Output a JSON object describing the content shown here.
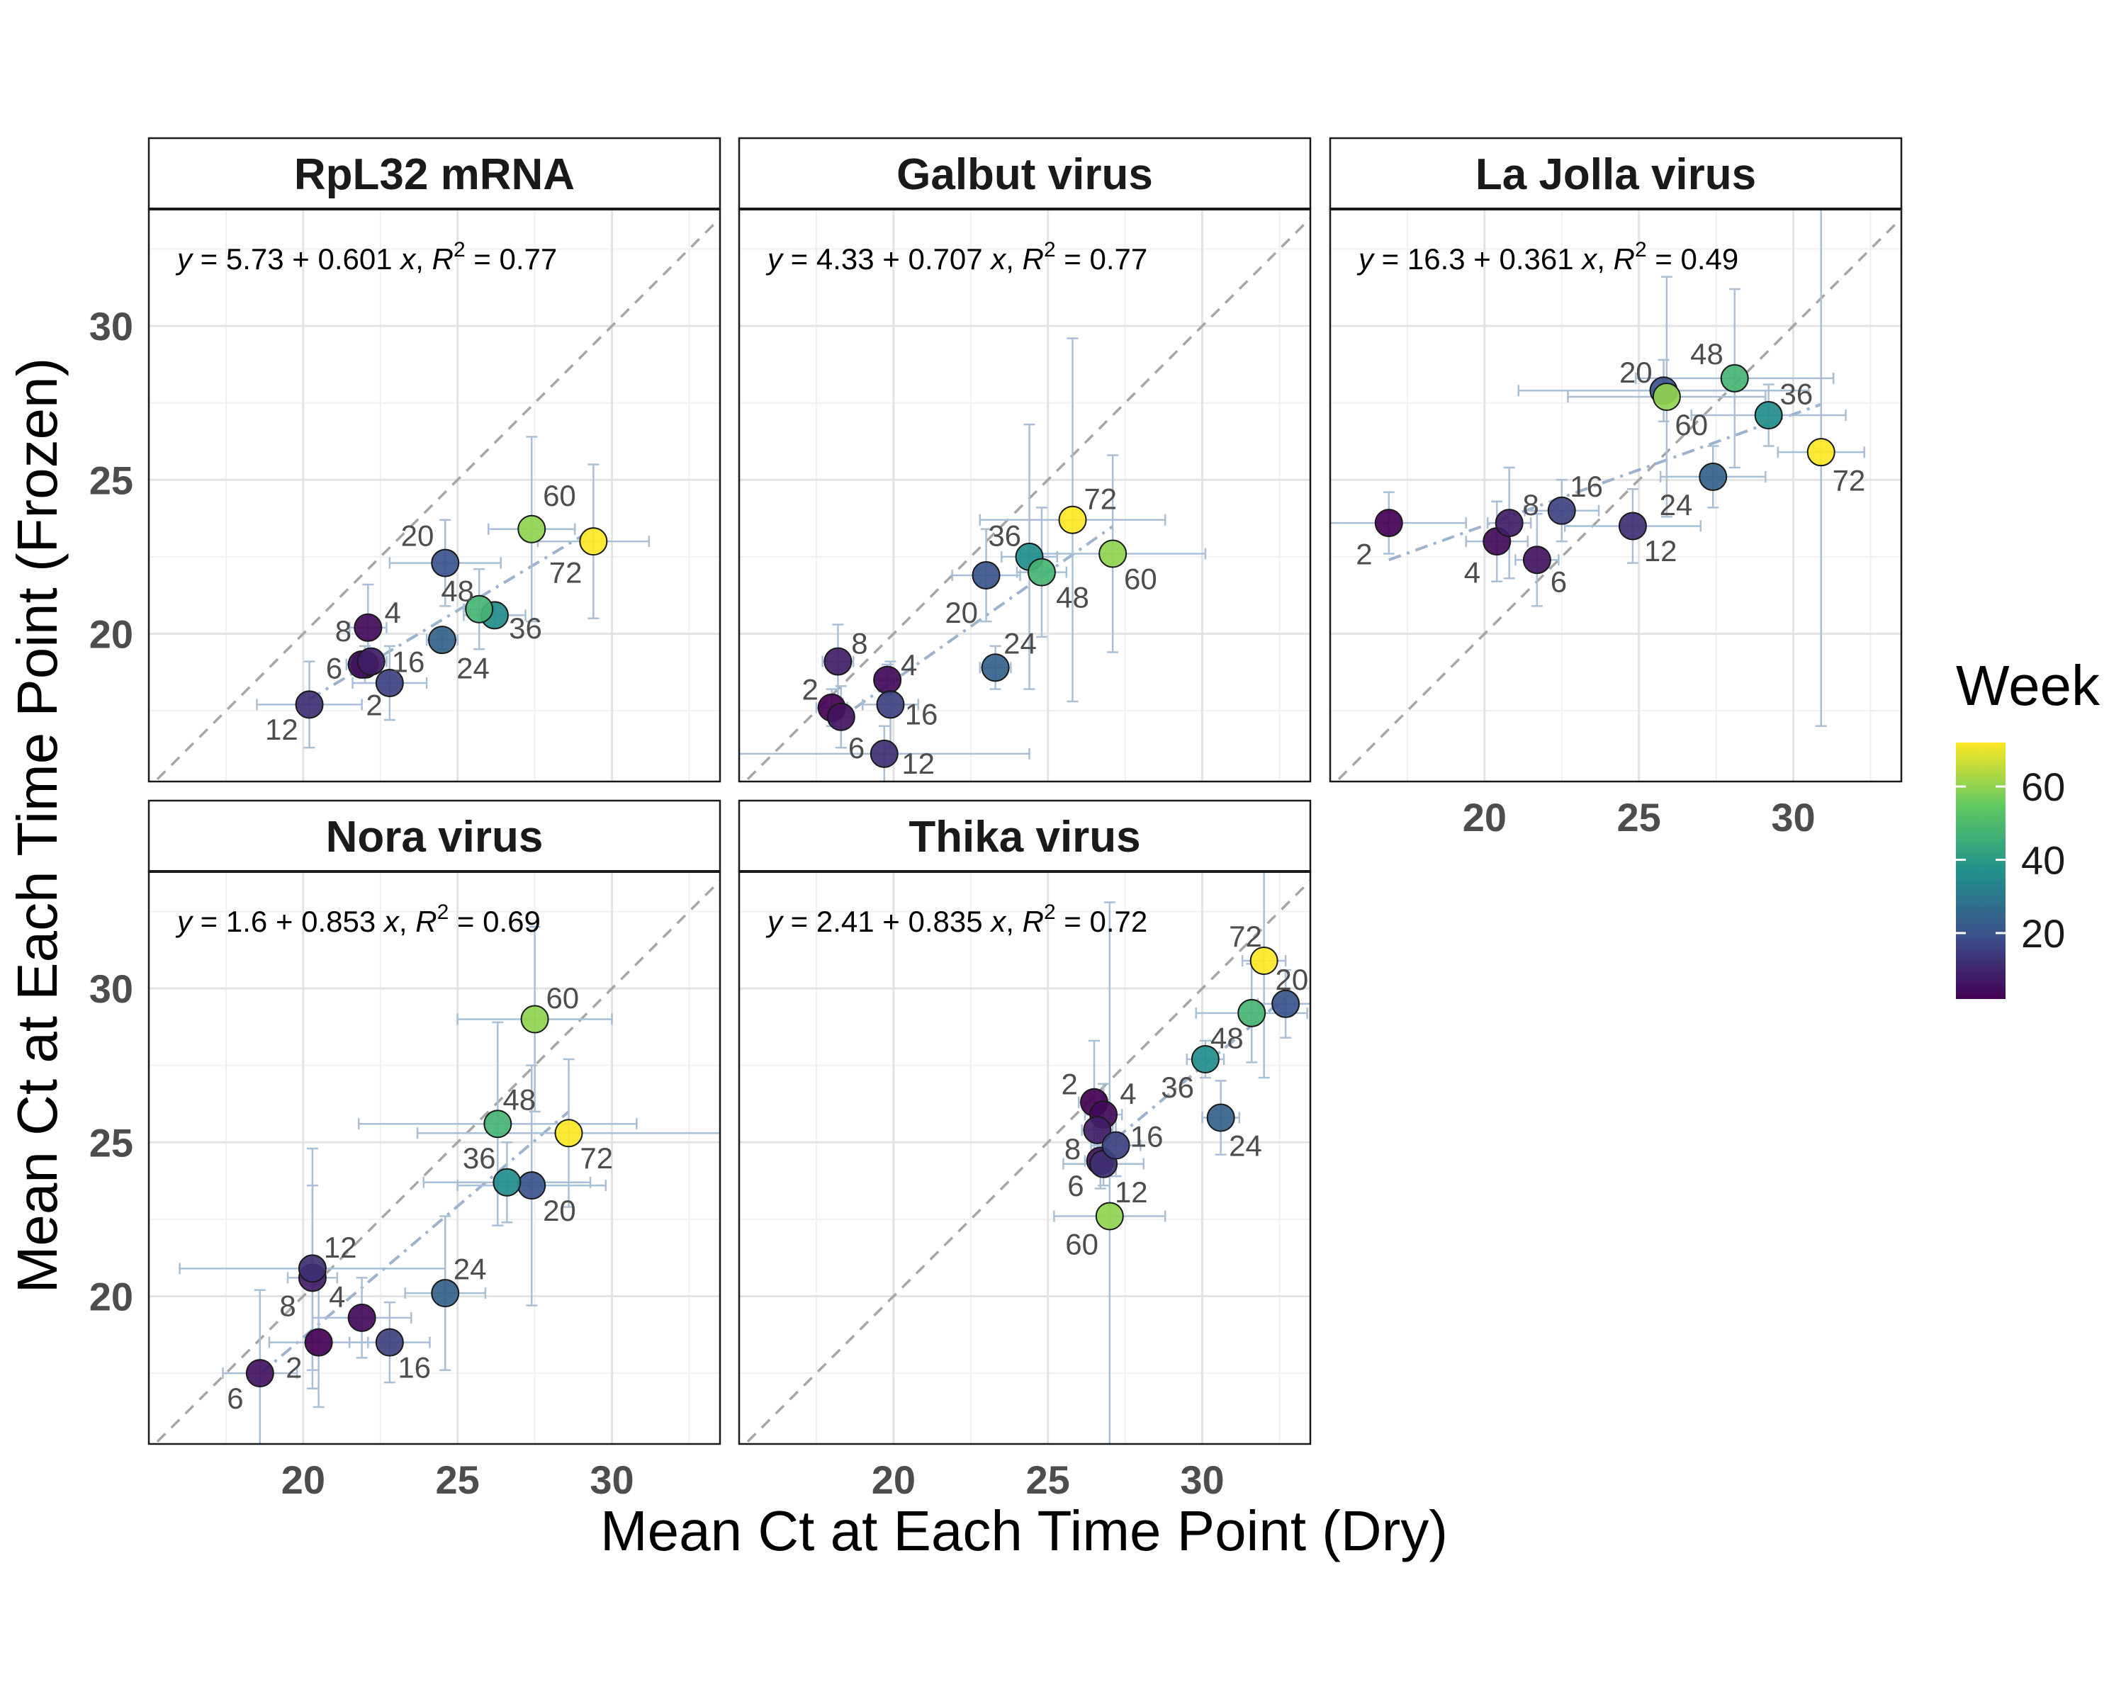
{
  "chart_data": {
    "type": "scatter",
    "xlabel": "Mean Ct at Each Time Point (Dry)",
    "ylabel": "Mean Ct at Each Time Point (Frozen)",
    "xlim": [
      15,
      33.5
    ],
    "ylim": [
      15.2,
      33.8
    ],
    "xticks": [
      20,
      25,
      30
    ],
    "yticks": [
      20,
      25,
      30
    ],
    "grid": true,
    "reference_line": "y = x (dashed)",
    "legend": {
      "title": "Week",
      "placement": "right",
      "type": "colorbar",
      "range": [
        2,
        72
      ],
      "ticks": [
        20,
        40,
        60
      ],
      "colormap": [
        "#440154",
        "#3b528b",
        "#21918c",
        "#5ec962",
        "#fde725"
      ]
    },
    "panels": [
      {
        "title": "RpL32 mRNA",
        "equation": {
          "intercept": "5.73",
          "slope": "0.601",
          "r2": "0.77"
        },
        "points": [
          {
            "week": "2",
            "x": 22.0,
            "y": 19.0,
            "xerr": 0.5,
            "yerr": 0.6,
            "lx": 0.3,
            "ly": -1.3
          },
          {
            "week": "4",
            "x": 22.1,
            "y": 20.2,
            "xerr": 0.6,
            "yerr": 1.4,
            "lx": 0.8,
            "ly": 0.5
          },
          {
            "week": "6",
            "x": 21.9,
            "y": 19.0,
            "xerr": 0.5,
            "yerr": 0.4,
            "lx": -0.9,
            "ly": -0.1
          },
          {
            "week": "8",
            "x": 22.2,
            "y": 19.1,
            "xerr": 0.5,
            "yerr": 0.4,
            "lx": -0.9,
            "ly": 1.0
          },
          {
            "week": "12",
            "x": 20.2,
            "y": 17.7,
            "xerr": 1.7,
            "yerr": 1.4,
            "lx": -0.9,
            "ly": -0.8
          },
          {
            "week": "16",
            "x": 22.8,
            "y": 18.4,
            "xerr": 1.2,
            "yerr": 1.2,
            "lx": 0.6,
            "ly": 0.7
          },
          {
            "week": "20",
            "x": 24.6,
            "y": 22.3,
            "xerr": 1.8,
            "yerr": 1.4,
            "lx": -0.9,
            "ly": 0.9
          },
          {
            "week": "24",
            "x": 24.5,
            "y": 19.8,
            "xerr": 0.5,
            "yerr": 0.3,
            "lx": 1.0,
            "ly": -0.9
          },
          {
            "week": "36",
            "x": 26.2,
            "y": 20.6,
            "xerr": 1.0,
            "yerr": 0.4,
            "lx": 1.0,
            "ly": -0.4
          },
          {
            "week": "48",
            "x": 25.7,
            "y": 20.8,
            "xerr": 0.5,
            "yerr": 1.3,
            "lx": -0.7,
            "ly": 0.6
          },
          {
            "week": "60",
            "x": 27.4,
            "y": 23.4,
            "xerr": 1.4,
            "yerr": 3.0,
            "lx": 0.9,
            "ly": 1.1
          },
          {
            "week": "72",
            "x": 29.4,
            "y": 23.0,
            "xerr": 1.8,
            "yerr": 2.5,
            "lx": -0.9,
            "ly": -1.0
          }
        ]
      },
      {
        "title": "Galbut virus",
        "equation": {
          "intercept": "4.33",
          "slope": "0.707",
          "r2": "0.77"
        },
        "points": [
          {
            "week": "2",
            "x": 18.0,
            "y": 17.6,
            "xerr": 0.5,
            "yerr": 0.6,
            "lx": -0.7,
            "ly": 0.6
          },
          {
            "week": "4",
            "x": 19.8,
            "y": 18.5,
            "xerr": 0.4,
            "yerr": 0.5,
            "lx": 0.7,
            "ly": 0.5
          },
          {
            "week": "6",
            "x": 18.3,
            "y": 17.3,
            "xerr": 0.4,
            "yerr": 1.0,
            "lx": 0.5,
            "ly": -1.0
          },
          {
            "week": "8",
            "x": 18.2,
            "y": 19.1,
            "xerr": 0.5,
            "yerr": 1.2,
            "lx": 0.7,
            "ly": 0.6
          },
          {
            "week": "12",
            "x": 19.7,
            "y": 16.1,
            "xerr": 4.7,
            "yerr": 0.9,
            "lx": 1.1,
            "ly": -0.3
          },
          {
            "week": "16",
            "x": 19.9,
            "y": 17.7,
            "xerr": 0.9,
            "yerr": 1.4,
            "lx": 1.0,
            "ly": -0.3
          },
          {
            "week": "20",
            "x": 23.0,
            "y": 21.9,
            "xerr": 1.1,
            "yerr": 1.5,
            "lx": -0.8,
            "ly": -1.2
          },
          {
            "week": "24",
            "x": 23.3,
            "y": 18.9,
            "xerr": 0.5,
            "yerr": 0.7,
            "lx": 0.8,
            "ly": 0.8
          },
          {
            "week": "36",
            "x": 24.4,
            "y": 22.5,
            "xerr": 0.9,
            "yerr": 4.3,
            "lx": -0.8,
            "ly": 0.7
          },
          {
            "week": "48",
            "x": 24.8,
            "y": 22.0,
            "xerr": 0.8,
            "yerr": 2.1,
            "lx": 1.0,
            "ly": -0.8
          },
          {
            "week": "60",
            "x": 27.1,
            "y": 22.6,
            "xerr": 3.0,
            "yerr": 3.2,
            "lx": 0.9,
            "ly": -0.8
          },
          {
            "week": "72",
            "x": 25.8,
            "y": 23.7,
            "xerr": 3.0,
            "yerr": 5.9,
            "lx": 0.9,
            "ly": 0.7
          }
        ]
      },
      {
        "title": "La Jolla virus",
        "equation": {
          "intercept": "16.3",
          "slope": "0.361",
          "r2": "0.49"
        },
        "points": [
          {
            "week": "2",
            "x": 16.9,
            "y": 23.6,
            "xerr": 2.5,
            "yerr": 1.0,
            "lx": -0.8,
            "ly": -1.0
          },
          {
            "week": "4",
            "x": 20.4,
            "y": 23.0,
            "xerr": 1.0,
            "yerr": 1.3,
            "lx": -0.8,
            "ly": -1.0
          },
          {
            "week": "6",
            "x": 21.7,
            "y": 22.4,
            "xerr": 0.7,
            "yerr": 1.5,
            "lx": 0.7,
            "ly": -0.7
          },
          {
            "week": "8",
            "x": 20.8,
            "y": 23.6,
            "xerr": 0.7,
            "yerr": 1.8,
            "lx": 0.7,
            "ly": 0.6
          },
          {
            "week": "12",
            "x": 24.8,
            "y": 23.5,
            "xerr": 2.2,
            "yerr": 1.2,
            "lx": 0.9,
            "ly": -0.8
          },
          {
            "week": "16",
            "x": 22.5,
            "y": 24.0,
            "xerr": 1.2,
            "yerr": 1.0,
            "lx": 0.8,
            "ly": 0.8
          },
          {
            "week": "20",
            "x": 25.8,
            "y": 27.9,
            "xerr": 4.7,
            "yerr": 1.0,
            "lx": -0.9,
            "ly": 0.6
          },
          {
            "week": "24",
            "x": 27.4,
            "y": 25.1,
            "xerr": 1.7,
            "yerr": 1.0,
            "lx": -1.2,
            "ly": -0.9
          },
          {
            "week": "36",
            "x": 29.2,
            "y": 27.1,
            "xerr": 2.5,
            "yerr": 1.0,
            "lx": 0.9,
            "ly": 0.7
          },
          {
            "week": "48",
            "x": 28.1,
            "y": 28.3,
            "xerr": 3.2,
            "yerr": 2.9,
            "lx": -0.9,
            "ly": 0.8
          },
          {
            "week": "60",
            "x": 25.9,
            "y": 27.7,
            "xerr": 3.2,
            "yerr": 3.9,
            "lx": 0.8,
            "ly": -0.9
          },
          {
            "week": "72",
            "x": 30.9,
            "y": 25.9,
            "xerr": 1.4,
            "yerr": 8.9,
            "lx": 0.9,
            "ly": -0.9
          }
        ]
      },
      {
        "title": "Nora virus",
        "equation": {
          "intercept": "1.6",
          "slope": "0.853",
          "r2": "0.69"
        },
        "points": [
          {
            "week": "2",
            "x": 20.5,
            "y": 18.5,
            "xerr": 1.6,
            "yerr": 2.1,
            "lx": -0.8,
            "ly": -0.8
          },
          {
            "week": "4",
            "x": 21.9,
            "y": 19.3,
            "xerr": 1.6,
            "yerr": 1.3,
            "lx": -0.8,
            "ly": 0.7
          },
          {
            "week": "6",
            "x": 18.6,
            "y": 17.5,
            "xerr": 1.2,
            "yerr": 2.7,
            "lx": -0.8,
            "ly": -0.8
          },
          {
            "week": "8",
            "x": 20.3,
            "y": 20.6,
            "xerr": 0.8,
            "yerr": 3.0,
            "lx": -0.8,
            "ly": -0.9
          },
          {
            "week": "12",
            "x": 20.3,
            "y": 20.9,
            "xerr": 4.3,
            "yerr": 3.9,
            "lx": 0.9,
            "ly": 0.7
          },
          {
            "week": "16",
            "x": 22.8,
            "y": 18.5,
            "xerr": 1.3,
            "yerr": 1.3,
            "lx": 0.8,
            "ly": -0.8
          },
          {
            "week": "20",
            "x": 27.4,
            "y": 23.6,
            "xerr": 2.4,
            "yerr": 3.9,
            "lx": 0.9,
            "ly": -0.8
          },
          {
            "week": "24",
            "x": 24.6,
            "y": 20.1,
            "xerr": 1.3,
            "yerr": 2.5,
            "lx": 0.8,
            "ly": 0.8
          },
          {
            "week": "36",
            "x": 26.6,
            "y": 23.7,
            "xerr": 2.7,
            "yerr": 1.3,
            "lx": -0.9,
            "ly": 0.8
          },
          {
            "week": "48",
            "x": 26.3,
            "y": 25.6,
            "xerr": 4.5,
            "yerr": 3.3,
            "lx": 0.7,
            "ly": 0.8
          },
          {
            "week": "60",
            "x": 27.5,
            "y": 29.0,
            "xerr": 2.5,
            "yerr": 3.0,
            "lx": 0.9,
            "ly": 0.7
          },
          {
            "week": "72",
            "x": 28.6,
            "y": 25.3,
            "xerr": 4.9,
            "yerr": 2.4,
            "lx": 0.9,
            "ly": -0.8
          }
        ]
      },
      {
        "title": "Thika virus",
        "equation": {
          "intercept": "2.41",
          "slope": "0.835",
          "r2": "0.72"
        },
        "points": [
          {
            "week": "2",
            "x": 26.5,
            "y": 26.3,
            "xerr": 0.5,
            "yerr": 2.0,
            "lx": -0.8,
            "ly": 0.6
          },
          {
            "week": "4",
            "x": 26.8,
            "y": 25.9,
            "xerr": 0.6,
            "yerr": 1.0,
            "lx": 0.8,
            "ly": 0.7
          },
          {
            "week": "6",
            "x": 26.7,
            "y": 24.4,
            "xerr": 0.5,
            "yerr": 0.9,
            "lx": -0.8,
            "ly": -0.8
          },
          {
            "week": "8",
            "x": 26.6,
            "y": 25.4,
            "xerr": 0.5,
            "yerr": 0.9,
            "lx": -0.8,
            "ly": -0.6
          },
          {
            "week": "12",
            "x": 26.8,
            "y": 24.3,
            "xerr": 1.3,
            "yerr": 0.7,
            "lx": 0.9,
            "ly": -0.9
          },
          {
            "week": "16",
            "x": 27.2,
            "y": 24.9,
            "xerr": 0.8,
            "yerr": 1.0,
            "lx": 1.0,
            "ly": 0.3
          },
          {
            "week": "20",
            "x": 32.7,
            "y": 29.5,
            "xerr": 0.9,
            "yerr": 1.1,
            "lx": 0.2,
            "ly": 0.8
          },
          {
            "week": "24",
            "x": 30.6,
            "y": 25.8,
            "xerr": 0.6,
            "yerr": 1.2,
            "lx": 0.8,
            "ly": -0.9
          },
          {
            "week": "36",
            "x": 30.1,
            "y": 27.7,
            "xerr": 0.6,
            "yerr": 0.6,
            "lx": -0.9,
            "ly": -0.9
          },
          {
            "week": "48",
            "x": 31.6,
            "y": 29.2,
            "xerr": 1.8,
            "yerr": 1.6,
            "lx": -0.8,
            "ly": -0.8
          },
          {
            "week": "60",
            "x": 27.0,
            "y": 22.6,
            "xerr": 1.8,
            "yerr": 10.2,
            "lx": -0.9,
            "ly": -0.9
          },
          {
            "week": "72",
            "x": 32.0,
            "y": 30.9,
            "xerr": 0.7,
            "yerr": 3.8,
            "lx": -0.6,
            "ly": 0.8
          }
        ]
      }
    ]
  }
}
